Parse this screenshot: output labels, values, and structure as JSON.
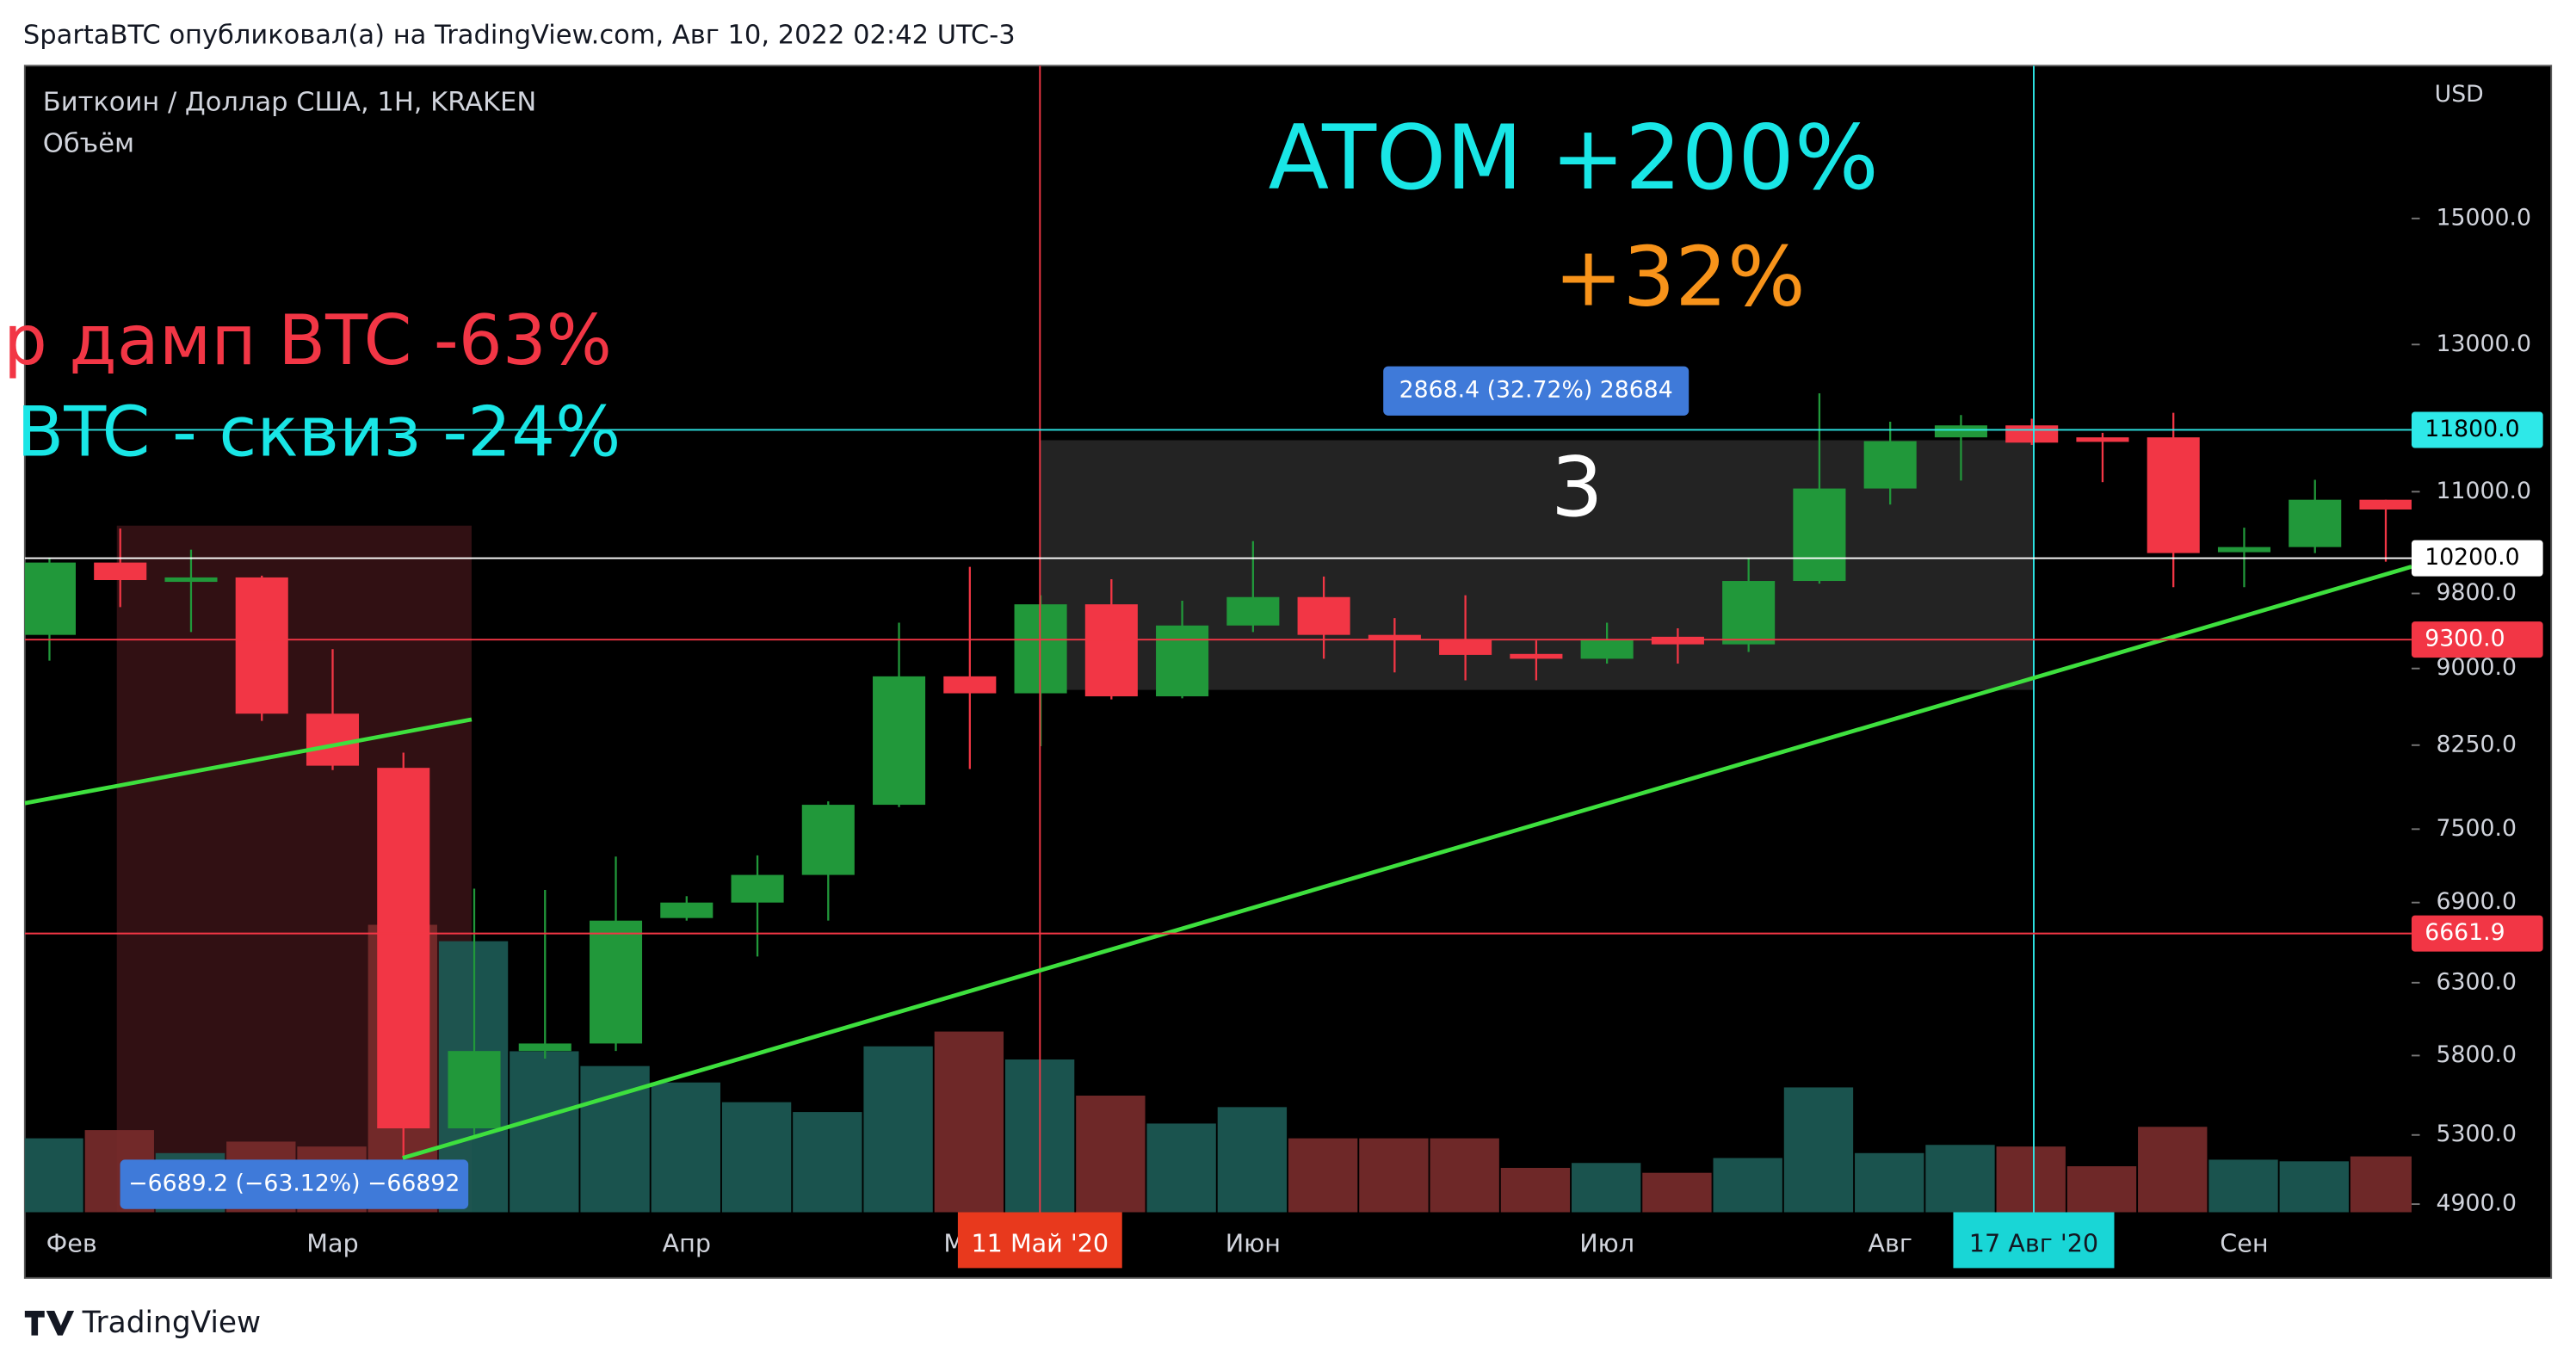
{
  "header": {
    "title": "SpartaBTC опубликовал(а) на TradingView.com, Авг 10, 2022 02:42 UTC-3"
  },
  "chart_data": {
    "type": "candlestick",
    "title": "Биткоин / Доллар США, 1Н, KRAKEN",
    "subtitle": "Объём",
    "y_unit": "USD",
    "categories": [
      "Фев",
      null,
      null,
      null,
      "Мар",
      null,
      null,
      null,
      null,
      "Апр",
      null,
      null,
      null,
      "Май",
      null,
      null,
      null,
      "Июн",
      null,
      null,
      null,
      null,
      "Июл",
      null,
      null,
      null,
      "Авг",
      null,
      null,
      null,
      null,
      "Сен",
      null,
      null
    ],
    "open": [
      9350,
      10150,
      9930,
      9980,
      8550,
      8040,
      5340,
      5830,
      5880,
      6780,
      6900,
      7120,
      7710,
      8920,
      8750,
      9680,
      8720,
      9450,
      9760,
      9350,
      9300,
      9150,
      9100,
      9330,
      9250,
      9940,
      11040,
      11700,
      11860,
      11700,
      11700,
      10270,
      10330,
      10900
    ],
    "high": [
      10200,
      10550,
      10300,
      10000,
      9200,
      8180,
      7010,
      7000,
      7270,
      6950,
      7280,
      7740,
      9480,
      10100,
      9780,
      9960,
      9720,
      10400,
      9990,
      9530,
      9780,
      9290,
      9480,
      9420,
      10200,
      12300,
      11910,
      12000,
      11950,
      11760,
      12030,
      10560,
      11150,
      10900
    ],
    "low": [
      9080,
      9650,
      9380,
      8480,
      8020,
      5170,
      5300,
      5780,
      5830,
      6760,
      6490,
      6760,
      7690,
      8030,
      8240,
      8690,
      8700,
      9380,
      9100,
      8960,
      8880,
      8880,
      9050,
      9050,
      9170,
      9910,
      10840,
      11140,
      11600,
      11120,
      9870,
      9870,
      10260,
      10160
    ],
    "close": [
      10150,
      9950,
      9980,
      8550,
      8060,
      5340,
      5830,
      5880,
      6760,
      6900,
      7120,
      7710,
      8920,
      8750,
      9680,
      8720,
      9450,
      9760,
      9350,
      9300,
      9140,
      9100,
      9300,
      9250,
      9940,
      11040,
      11650,
      11860,
      11630,
      11640,
      10260,
      10330,
      10900,
      10780
    ],
    "volume": [
      45,
      50,
      36,
      43,
      40,
      175,
      165,
      98,
      89,
      79,
      67,
      61,
      101,
      110,
      93,
      71,
      54,
      64,
      45,
      45,
      45,
      27,
      30,
      24,
      33,
      76,
      36,
      41,
      40,
      28,
      52,
      32,
      31,
      34
    ],
    "up_color": "#21983a",
    "down_color": "#f23645",
    "volume_up_color": "#1d5c57",
    "volume_down_color": "#7a2c2c",
    "log_scale": true,
    "ylim": [
      4855,
      17840
    ],
    "yticks": [
      {
        "value": 15000,
        "label": "15000.0"
      },
      {
        "value": 13000,
        "label": "13000.0"
      },
      {
        "value": 11000,
        "label": "11000.0"
      },
      {
        "value": 9800,
        "label": "9800.0"
      },
      {
        "value": 9000,
        "label": "9000.0"
      },
      {
        "value": 8250,
        "label": "8250.0"
      },
      {
        "value": 7500,
        "label": "7500.0"
      },
      {
        "value": 6900,
        "label": "6900.0"
      },
      {
        "value": 6300,
        "label": "6300.0"
      },
      {
        "value": 5800,
        "label": "5800.0"
      },
      {
        "value": 5300,
        "label": "5300.0"
      },
      {
        "value": 4900,
        "label": "4900.0"
      }
    ],
    "price_lines": [
      {
        "value": 11800,
        "label": "11800.0",
        "color": "#2ee8e8"
      },
      {
        "value": 10200,
        "label": "10200.0",
        "color": "#ffffff"
      },
      {
        "value": 9300,
        "label": "9300.0",
        "color": "#f23645"
      },
      {
        "value": 6661.9,
        "label": "6661.9",
        "color": "#f23645"
      }
    ],
    "annotations": [
      "ATOM +200%",
      "+32%",
      "р дамп BTC -63%",
      "BTC - сквиз -24%",
      "2868.4 (32.72%) 28684",
      "3",
      "−6689.2 (−63.12%) −66892"
    ],
    "date_markers": [
      {
        "label": "11 Май '20",
        "color": "#e8391d"
      },
      {
        "label": "17 Авг '20",
        "color": "#19d6d6"
      }
    ]
  },
  "footer": {
    "logo": "TradingView"
  }
}
